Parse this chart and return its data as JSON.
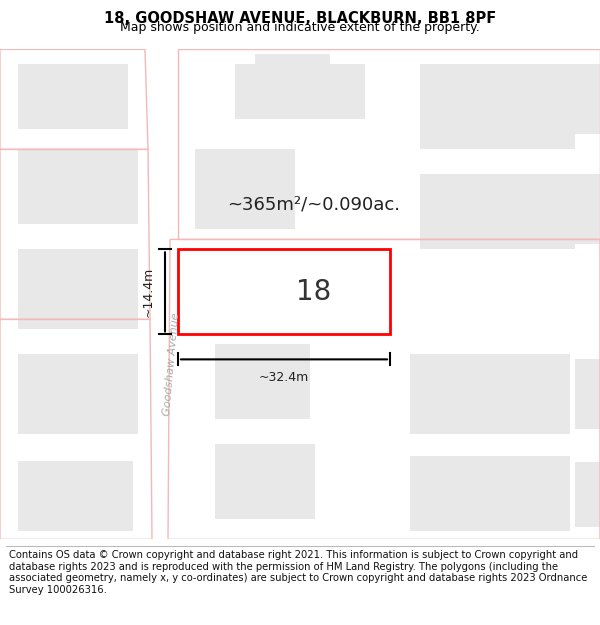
{
  "title_line1": "18, GOODSHAW AVENUE, BLACKBURN, BB1 8PF",
  "title_line2": "Map shows position and indicative extent of the property.",
  "footer_text": "Contains OS data © Crown copyright and database right 2021. This information is subject to Crown copyright and database rights 2023 and is reproduced with the permission of HM Land Registry. The polygons (including the associated geometry, namely x, y co-ordinates) are subject to Crown copyright and database rights 2023 Ordnance Survey 100026316.",
  "bg_color": "#ffffff",
  "map_bg_color": "#ffffff",
  "building_fill": "#e8e8e8",
  "building_stroke": "none",
  "plot_boundary_color": "#f4b8b8",
  "road_color": "#ffffff",
  "road_label": "Goodshaw Avenue",
  "highlight_color": "#ff0000",
  "highlight_fill": "#ffffff",
  "area_label": "~365m²/~0.090ac.",
  "number_label": "18",
  "dim_width": "~32.4m",
  "dim_height": "~14.4m",
  "title_fontsize": 10.5,
  "subtitle_fontsize": 9,
  "footer_fontsize": 7.2,
  "label_fontsize": 13,
  "number_fontsize": 20,
  "dim_fontsize": 9,
  "road_fontsize": 8
}
